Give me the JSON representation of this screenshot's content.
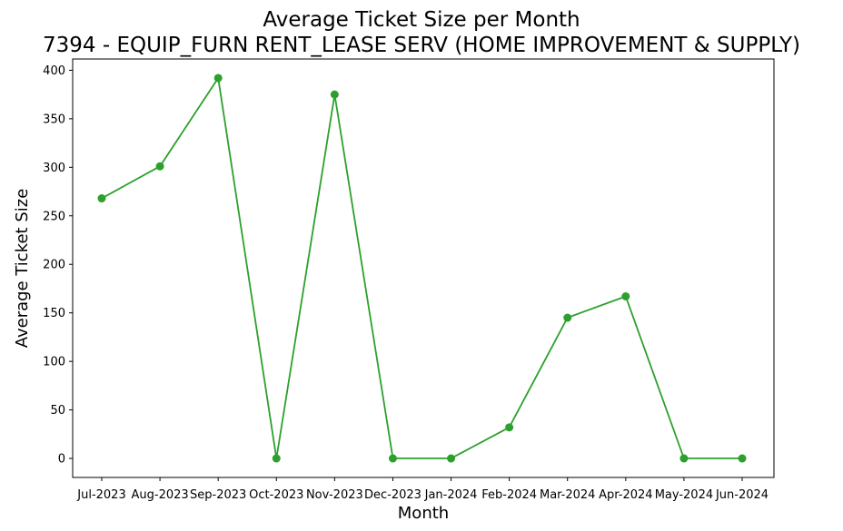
{
  "chart_data": {
    "type": "line",
    "title": "Average Ticket Size per Month",
    "subtitle": "7394 - EQUIP_FURN RENT_LEASE SERV (HOME IMPROVEMENT & SUPPLY)",
    "xlabel": "Month",
    "ylabel": "Average Ticket Size",
    "categories": [
      "Jul-2023",
      "Aug-2023",
      "Sep-2023",
      "Oct-2023",
      "Nov-2023",
      "Dec-2023",
      "Jan-2024",
      "Feb-2024",
      "Mar-2024",
      "Apr-2024",
      "May-2024",
      "Jun-2024"
    ],
    "series": [
      {
        "values": [
          268,
          301,
          392,
          0,
          375,
          0,
          0,
          32,
          145,
          167,
          0,
          0
        ],
        "color": "#2ca02c"
      }
    ],
    "ylim": [
      -19.6,
      411.6
    ],
    "yticks": [
      0,
      50,
      100,
      150,
      200,
      250,
      300,
      350,
      400
    ],
    "grid": false,
    "legend": "none"
  }
}
